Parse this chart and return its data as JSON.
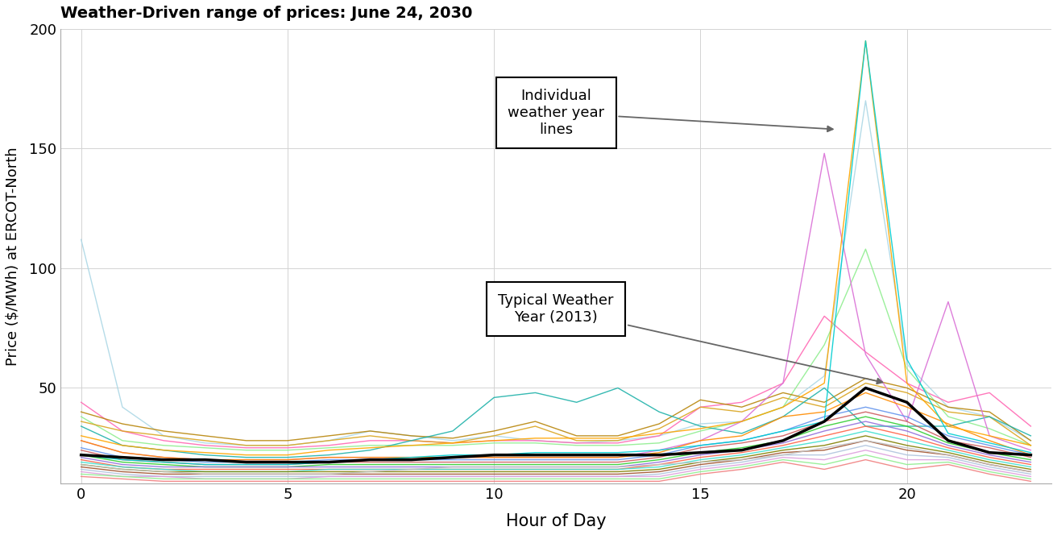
{
  "title": "Weather-Driven range of prices: June 24, 2030",
  "xlabel": "Hour of Day",
  "ylabel": "Price ($/MWh) at ERCOT-North",
  "xlim": [
    -0.5,
    23.5
  ],
  "ylim": [
    10,
    200
  ],
  "yticks": [
    50,
    100,
    150,
    200
  ],
  "xticks": [
    0,
    5,
    10,
    15,
    20
  ],
  "typical_year_label": "Typical Weather\nYear (2013)",
  "individual_label": "Individual\nweather year\nlines",
  "hours": [
    0,
    1,
    2,
    3,
    4,
    5,
    6,
    7,
    8,
    9,
    10,
    11,
    12,
    13,
    14,
    15,
    16,
    17,
    18,
    19,
    20,
    21,
    22,
    23
  ],
  "typical_line": [
    22,
    21,
    20,
    20,
    19,
    19,
    19,
    20,
    20,
    21,
    22,
    22,
    22,
    22,
    22,
    23,
    24,
    28,
    36,
    50,
    44,
    28,
    23,
    22
  ],
  "weather_lines": [
    {
      "color": "#add8e6",
      "data": [
        112,
        42,
        30,
        27,
        26,
        26,
        28,
        32,
        30,
        28,
        30,
        28,
        27,
        28,
        30,
        35,
        36,
        42,
        55,
        170,
        60,
        42,
        38,
        28
      ]
    },
    {
      "color": "#ff69b4",
      "data": [
        44,
        32,
        28,
        26,
        25,
        25,
        26,
        28,
        28,
        27,
        28,
        28,
        27,
        27,
        30,
        42,
        44,
        52,
        80,
        65,
        52,
        44,
        48,
        34
      ]
    },
    {
      "color": "#90ee90",
      "data": [
        38,
        28,
        26,
        25,
        24,
        24,
        25,
        26,
        26,
        26,
        27,
        27,
        26,
        26,
        27,
        32,
        36,
        42,
        68,
        108,
        58,
        38,
        33,
        26
      ]
    },
    {
      "color": "#daa520",
      "data": [
        36,
        32,
        30,
        28,
        26,
        26,
        28,
        30,
        28,
        27,
        30,
        34,
        28,
        28,
        33,
        42,
        40,
        46,
        42,
        52,
        48,
        40,
        38,
        26
      ]
    },
    {
      "color": "#b8860b",
      "data": [
        40,
        35,
        32,
        30,
        28,
        28,
        30,
        32,
        30,
        29,
        32,
        36,
        30,
        30,
        35,
        45,
        42,
        48,
        44,
        54,
        50,
        42,
        40,
        28
      ]
    },
    {
      "color": "#20b2aa",
      "data": [
        34,
        26,
        24,
        22,
        21,
        21,
        22,
        24,
        28,
        32,
        46,
        48,
        44,
        50,
        40,
        34,
        31,
        38,
        50,
        34,
        34,
        34,
        38,
        30
      ]
    },
    {
      "color": "#da70d6",
      "data": [
        28,
        23,
        21,
        20,
        20,
        20,
        21,
        21,
        21,
        21,
        21,
        21,
        21,
        21,
        24,
        28,
        36,
        52,
        148,
        64,
        36,
        86,
        30,
        24
      ]
    },
    {
      "color": "#ff8c00",
      "data": [
        28,
        23,
        21,
        20,
        20,
        20,
        21,
        21,
        21,
        21,
        21,
        21,
        21,
        21,
        23,
        28,
        30,
        38,
        40,
        48,
        42,
        35,
        28,
        22
      ]
    },
    {
      "color": "#6495ed",
      "data": [
        25,
        21,
        20,
        19,
        19,
        19,
        20,
        20,
        20,
        20,
        20,
        20,
        20,
        20,
        22,
        26,
        28,
        32,
        38,
        42,
        38,
        30,
        26,
        22
      ]
    },
    {
      "color": "#cd5c5c",
      "data": [
        24,
        20,
        19,
        18,
        18,
        18,
        19,
        19,
        19,
        19,
        19,
        19,
        19,
        19,
        21,
        25,
        27,
        30,
        36,
        40,
        36,
        28,
        25,
        21
      ]
    },
    {
      "color": "#32cd32",
      "data": [
        22,
        19,
        18,
        17,
        17,
        17,
        18,
        18,
        18,
        18,
        18,
        18,
        18,
        18,
        20,
        23,
        25,
        28,
        34,
        38,
        34,
        27,
        23,
        20
      ]
    },
    {
      "color": "#9370db",
      "data": [
        21,
        18,
        17,
        17,
        17,
        17,
        17,
        17,
        17,
        17,
        17,
        17,
        17,
        17,
        19,
        22,
        24,
        27,
        32,
        36,
        32,
        26,
        22,
        19
      ]
    },
    {
      "color": "#ff6347",
      "data": [
        20,
        17,
        16,
        16,
        16,
        16,
        16,
        16,
        16,
        16,
        16,
        16,
        16,
        16,
        18,
        21,
        23,
        26,
        30,
        34,
        30,
        25,
        21,
        18
      ]
    },
    {
      "color": "#40e0d0",
      "data": [
        19,
        17,
        16,
        15,
        15,
        15,
        16,
        16,
        16,
        16,
        16,
        16,
        16,
        16,
        17,
        20,
        22,
        25,
        28,
        32,
        28,
        24,
        20,
        17
      ]
    },
    {
      "color": "#808000",
      "data": [
        18,
        16,
        15,
        15,
        15,
        15,
        15,
        15,
        15,
        15,
        15,
        15,
        15,
        15,
        16,
        19,
        21,
        24,
        26,
        30,
        26,
        23,
        19,
        16
      ]
    },
    {
      "color": "#a0522d",
      "data": [
        17,
        15,
        14,
        14,
        14,
        14,
        14,
        14,
        14,
        14,
        14,
        14,
        14,
        14,
        15,
        18,
        20,
        23,
        24,
        28,
        24,
        22,
        18,
        15
      ]
    },
    {
      "color": "#b0c4de",
      "data": [
        16,
        14,
        13,
        13,
        13,
        13,
        13,
        13,
        13,
        13,
        13,
        13,
        13,
        13,
        14,
        17,
        19,
        22,
        22,
        26,
        22,
        21,
        17,
        14
      ]
    },
    {
      "color": "#dda0dd",
      "data": [
        15,
        13,
        13,
        12,
        12,
        12,
        13,
        13,
        13,
        13,
        13,
        13,
        13,
        13,
        13,
        16,
        18,
        21,
        20,
        24,
        20,
        20,
        16,
        13
      ]
    },
    {
      "color": "#90ee90",
      "data": [
        14,
        13,
        12,
        12,
        12,
        12,
        12,
        12,
        12,
        12,
        12,
        12,
        12,
        12,
        12,
        15,
        17,
        20,
        18,
        22,
        18,
        19,
        15,
        12
      ]
    },
    {
      "color": "#f08080",
      "data": [
        13,
        12,
        11,
        11,
        11,
        11,
        11,
        11,
        11,
        11,
        11,
        11,
        11,
        11,
        11,
        14,
        16,
        19,
        16,
        20,
        16,
        18,
        14,
        11
      ]
    },
    {
      "color": "#ffa500",
      "data": [
        30,
        26,
        24,
        23,
        22,
        22,
        24,
        25,
        26,
        27,
        28,
        29,
        29,
        29,
        31,
        33,
        36,
        42,
        52,
        195,
        52,
        34,
        30,
        26
      ]
    },
    {
      "color": "#c0c0c0",
      "data": [
        18,
        16,
        15,
        14,
        14,
        14,
        14,
        15,
        16,
        17,
        17,
        17,
        17,
        17,
        18,
        19,
        20,
        22,
        25,
        28,
        25,
        22,
        18,
        15
      ]
    },
    {
      "color": "#00ced1",
      "data": [
        22,
        20,
        19,
        18,
        18,
        18,
        19,
        20,
        21,
        22,
        22,
        23,
        23,
        23,
        24,
        26,
        28,
        32,
        36,
        195,
        62,
        31,
        27,
        23
      ]
    }
  ]
}
